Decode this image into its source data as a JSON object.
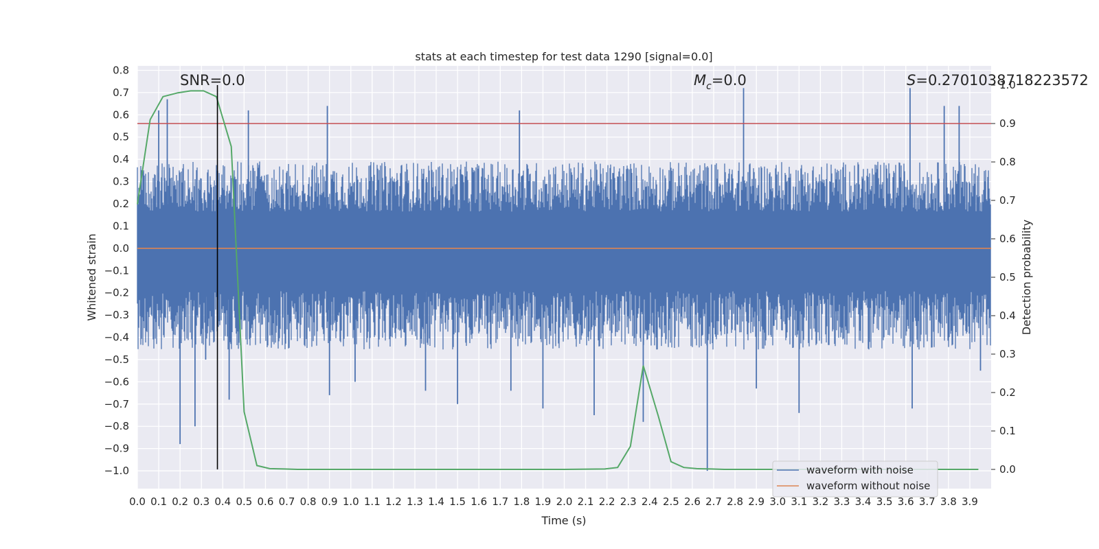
{
  "chart_data": {
    "type": "line",
    "title": "stats at each timestep for test data 1290 [signal=0.0]",
    "xlabel": "Time (s)",
    "ylabel": "Whitened strain",
    "y2label": "Detection probability",
    "xlim": [
      0.0,
      4.0
    ],
    "ylim": [
      -1.08,
      0.82
    ],
    "y2lim": [
      -0.05,
      1.05
    ],
    "x_ticks": [
      "0.0",
      "0.1",
      "0.2",
      "0.3",
      "0.4",
      "0.5",
      "0.6",
      "0.7",
      "0.8",
      "0.9",
      "1.0",
      "1.1",
      "1.2",
      "1.3",
      "1.4",
      "1.5",
      "1.6",
      "1.7",
      "1.8",
      "1.9",
      "2.0",
      "2.1",
      "2.2",
      "2.3",
      "2.4",
      "2.5",
      "2.6",
      "2.7",
      "2.8",
      "2.9",
      "3.0",
      "3.1",
      "3.2",
      "3.3",
      "3.4",
      "3.5",
      "3.6",
      "3.7",
      "3.8",
      "3.9"
    ],
    "y_ticks": [
      "0.8",
      "0.7",
      "0.6",
      "0.5",
      "0.4",
      "0.3",
      "0.2",
      "0.1",
      "0.0",
      "−0.1",
      "−0.2",
      "−0.3",
      "−0.4",
      "−0.5",
      "−0.6",
      "−0.7",
      "−0.8",
      "−0.9",
      "−1.0"
    ],
    "y2_ticks": [
      "1.0",
      "0.9",
      "0.8",
      "0.7",
      "0.6",
      "0.5",
      "0.4",
      "0.3",
      "0.2",
      "0.1",
      "0.0"
    ],
    "grid": true,
    "annotations": {
      "snr": "SNR=0.0",
      "mc_symbol": "M",
      "mc_subscript": "c",
      "mc_value": "=0.0",
      "s_symbol": "S",
      "s_value": "=0.2701038718223572"
    },
    "threshold": 0.9,
    "marker_time": 0.375,
    "noise": {
      "name": "waveform with noise",
      "color": "#4c72b0",
      "envelope_x": [
        0.0,
        0.5,
        1.0,
        1.5,
        2.0,
        2.5,
        3.0,
        3.5,
        4.0
      ],
      "upper_typical": 0.3,
      "lower_typical": -0.35,
      "spikes": [
        {
          "x": 0.2,
          "y": -0.88
        },
        {
          "x": 0.27,
          "y": -0.8
        },
        {
          "x": 0.32,
          "y": -0.5
        },
        {
          "x": 0.1,
          "y": 0.62
        },
        {
          "x": 0.14,
          "y": 0.67
        },
        {
          "x": 0.43,
          "y": -0.68
        },
        {
          "x": 0.52,
          "y": 0.62
        },
        {
          "x": 0.9,
          "y": -0.66
        },
        {
          "x": 0.89,
          "y": 0.64
        },
        {
          "x": 1.02,
          "y": -0.6
        },
        {
          "x": 1.35,
          "y": -0.64
        },
        {
          "x": 1.5,
          "y": -0.7
        },
        {
          "x": 1.75,
          "y": -0.64
        },
        {
          "x": 1.79,
          "y": 0.62
        },
        {
          "x": 1.9,
          "y": -0.72
        },
        {
          "x": 2.14,
          "y": -0.75
        },
        {
          "x": 2.37,
          "y": -0.78
        },
        {
          "x": 2.67,
          "y": -1.0
        },
        {
          "x": 2.84,
          "y": 0.72
        },
        {
          "x": 2.9,
          "y": -0.63
        },
        {
          "x": 3.1,
          "y": -0.74
        },
        {
          "x": 3.62,
          "y": 0.72
        },
        {
          "x": 3.63,
          "y": -0.72
        },
        {
          "x": 3.85,
          "y": 0.64
        },
        {
          "x": 3.78,
          "y": 0.64
        },
        {
          "x": 3.95,
          "y": -0.55
        }
      ]
    },
    "clean": {
      "name": "waveform without noise",
      "color": "#dd8452",
      "y": 0.0
    },
    "probability": {
      "color": "#55a868",
      "x": [
        0.0,
        0.06,
        0.12,
        0.19,
        0.25,
        0.31,
        0.37,
        0.44,
        0.5,
        0.56,
        0.62,
        0.69,
        0.75,
        0.81,
        1.0,
        1.5,
        2.0,
        2.19,
        2.25,
        2.31,
        2.37,
        2.44,
        2.5,
        2.56,
        2.62,
        2.69,
        2.75,
        3.0,
        3.5,
        3.94
      ],
      "y": [
        0.69,
        0.91,
        0.97,
        0.98,
        0.985,
        0.985,
        0.97,
        0.84,
        0.15,
        0.01,
        0.002,
        0.001,
        0.0,
        0.0,
        0.0,
        0.0,
        0.0,
        0.001,
        0.005,
        0.06,
        0.27,
        0.14,
        0.02,
        0.005,
        0.002,
        0.001,
        0.0,
        0.0,
        0.0,
        0.0
      ]
    },
    "threshold_color": "#c44e52",
    "legend_position": "lower-right"
  }
}
